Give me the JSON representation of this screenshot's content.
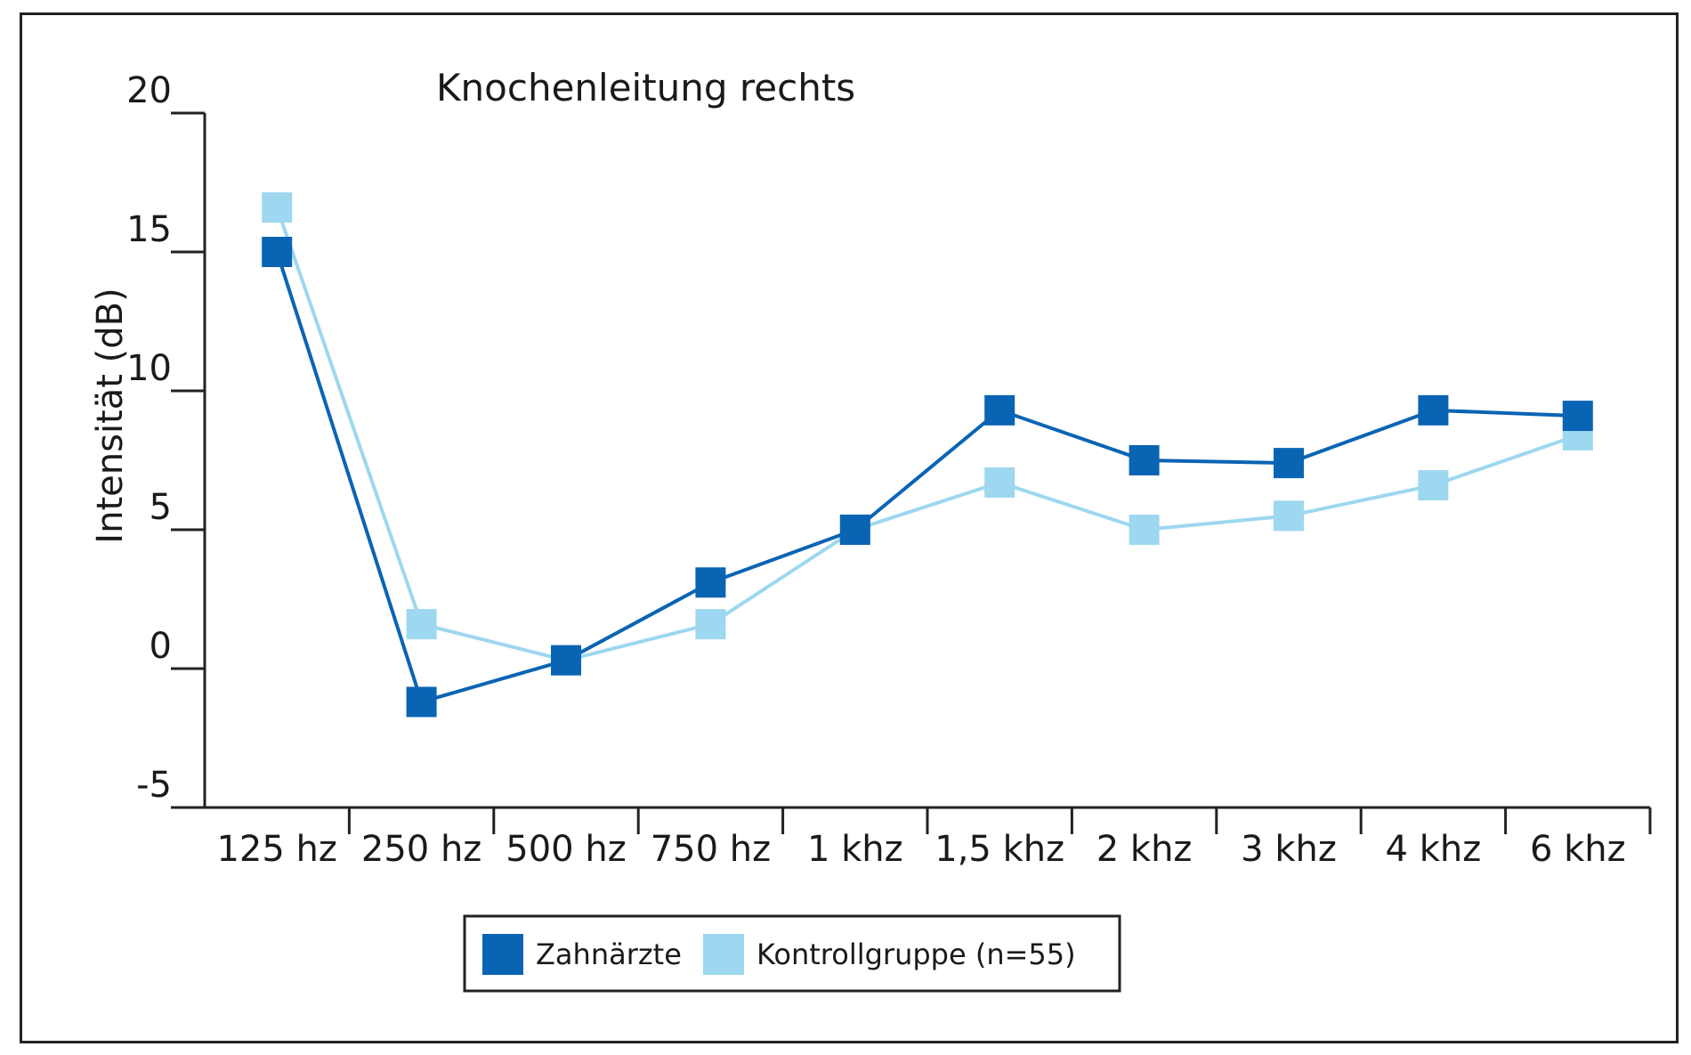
{
  "chart_data": {
    "type": "line",
    "title": "Knochenleitung rechts",
    "xlabel": "",
    "ylabel": "Intensität (dB)",
    "ylim": [
      -5,
      20
    ],
    "yticks": [
      20,
      15,
      10,
      5,
      0,
      -5
    ],
    "categories": [
      "125 hz",
      "250 hz",
      "500 hz",
      "750 hz",
      "1 khz",
      "1,5 khz",
      "2 khz",
      "3 khz",
      "4 khz",
      "6 khz"
    ],
    "series": [
      {
        "name": "Kontrollgruppe (n=55)",
        "color": "#9dd7f0",
        "values": [
          16.6,
          1.6,
          0.3,
          1.6,
          5.0,
          6.7,
          5.0,
          5.5,
          6.6,
          8.4
        ]
      },
      {
        "name": "Zahnärzte",
        "color": "#0a64b4",
        "values": [
          15.0,
          -1.2,
          0.3,
          3.1,
          5.0,
          9.3,
          7.5,
          7.4,
          9.3,
          9.1
        ]
      }
    ],
    "grid": false,
    "legend_position": "bottom-center"
  }
}
